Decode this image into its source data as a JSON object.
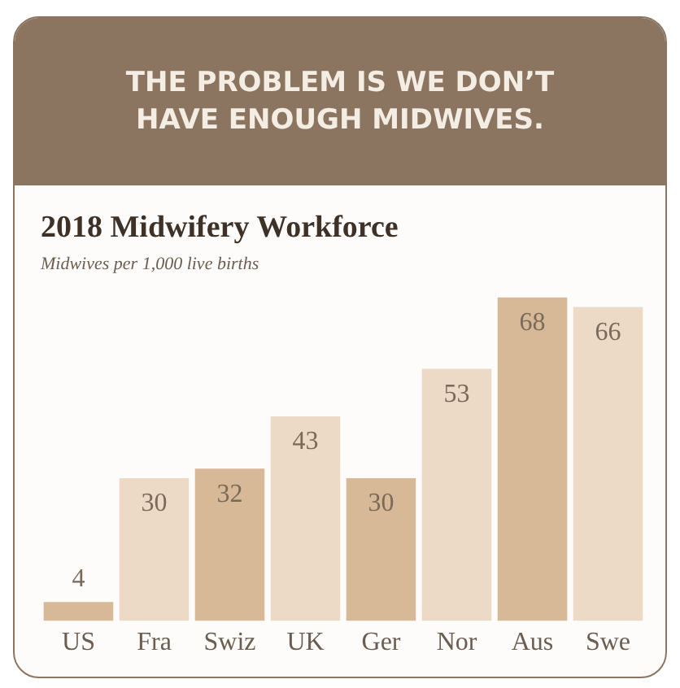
{
  "chart_data": {
    "type": "bar",
    "title": "2018 Midwifery Workforce",
    "subtitle": "Midwives per 1,000 live births",
    "annotations": [
      "THE PROBLEM IS WE DON’T HAVE ENOUGH MIDWIVES."
    ],
    "categories": [
      "US",
      "Fra",
      "Swiz",
      "UK",
      "Ger",
      "Nor",
      "Aus",
      "Swe"
    ],
    "values": [
      4,
      30,
      32,
      43,
      30,
      53,
      68,
      66
    ],
    "colors": [
      "#d8b997",
      "#ecdac6",
      "#d8b997",
      "#ecdac6",
      "#d8b997",
      "#ecdac6",
      "#d8b997",
      "#ecdac6"
    ],
    "data_labels": true,
    "grid": false,
    "legend": false
  }
}
